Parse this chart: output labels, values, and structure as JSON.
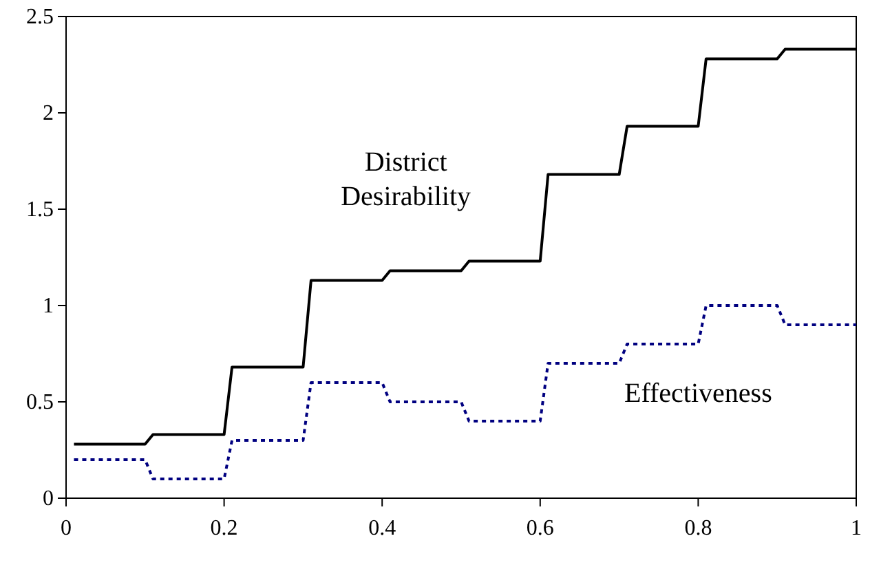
{
  "chart_data": {
    "type": "line",
    "xlim": [
      0,
      1
    ],
    "ylim": [
      0,
      2.5
    ],
    "xticks": [
      0,
      0.2,
      0.4,
      0.6,
      0.8,
      1
    ],
    "yticks": [
      0,
      0.5,
      1,
      1.5,
      2,
      2.5
    ],
    "grid": false,
    "marker": "none",
    "series": [
      {
        "name": "District Desirability",
        "color": "#000000",
        "line_style": "solid",
        "x": [
          0.01,
          0.1,
          0.11,
          0.2,
          0.21,
          0.3,
          0.31,
          0.4,
          0.41,
          0.5,
          0.51,
          0.6,
          0.61,
          0.7,
          0.71,
          0.8,
          0.81,
          0.9,
          0.91,
          1.0
        ],
        "values": [
          0.28,
          0.28,
          0.33,
          0.33,
          0.68,
          0.68,
          1.13,
          1.13,
          1.18,
          1.18,
          1.23,
          1.23,
          1.68,
          1.68,
          1.93,
          1.93,
          2.28,
          2.28,
          2.33,
          2.33
        ]
      },
      {
        "name": "Effectiveness",
        "color": "#000080",
        "line_style": "dotted",
        "x": [
          0.01,
          0.1,
          0.11,
          0.2,
          0.21,
          0.3,
          0.31,
          0.4,
          0.41,
          0.5,
          0.51,
          0.6,
          0.61,
          0.7,
          0.71,
          0.8,
          0.81,
          0.9,
          0.91,
          1.0
        ],
        "values": [
          0.2,
          0.2,
          0.1,
          0.1,
          0.3,
          0.3,
          0.6,
          0.6,
          0.5,
          0.5,
          0.4,
          0.4,
          0.7,
          0.7,
          0.8,
          0.8,
          1.0,
          1.0,
          0.9,
          0.9
        ]
      }
    ]
  }
}
